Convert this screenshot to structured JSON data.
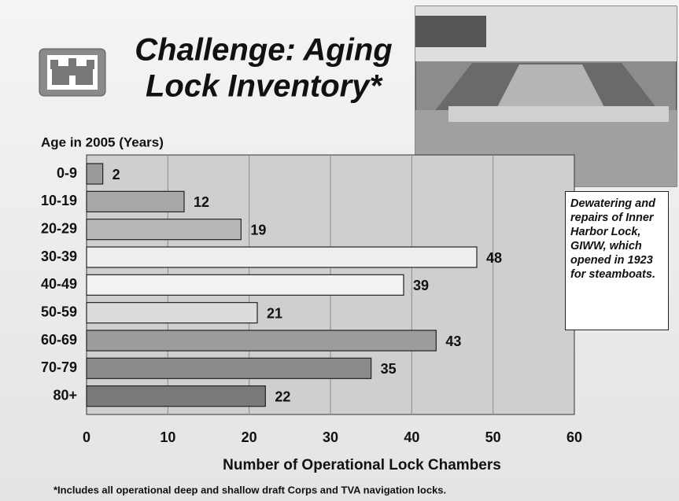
{
  "chart_data": {
    "type": "bar",
    "orientation": "horizontal",
    "title_lines": [
      "Challenge:  Aging",
      "Lock Inventory*"
    ],
    "y_axis_label": "Age in 2005 (Years)",
    "x_axis_label": "Number of Operational Lock Chambers",
    "categories": [
      "0-9",
      "10-19",
      "20-29",
      "30-39",
      "40-49",
      "50-59",
      "60-69",
      "70-79",
      "80+"
    ],
    "values": [
      2,
      12,
      19,
      48,
      39,
      21,
      43,
      35,
      22
    ],
    "colors": [
      "#9a9a9a",
      "#a8a8a8",
      "#b8b8b8",
      "#efefef",
      "#f2f2f2",
      "#dcdcdc",
      "#9c9c9c",
      "#8a8a8a",
      "#7a7a7a"
    ],
    "xlim": [
      0,
      60
    ],
    "xticks": [
      0,
      10,
      20,
      30,
      40,
      50,
      60
    ],
    "grid": true,
    "caption": "Dewatering and repairs of Inner Harbor Lock, GIWW, which opened in 1923 for steamboats.",
    "footnote": "*Includes all operational deep and shallow draft Corps and TVA navigation locks."
  }
}
